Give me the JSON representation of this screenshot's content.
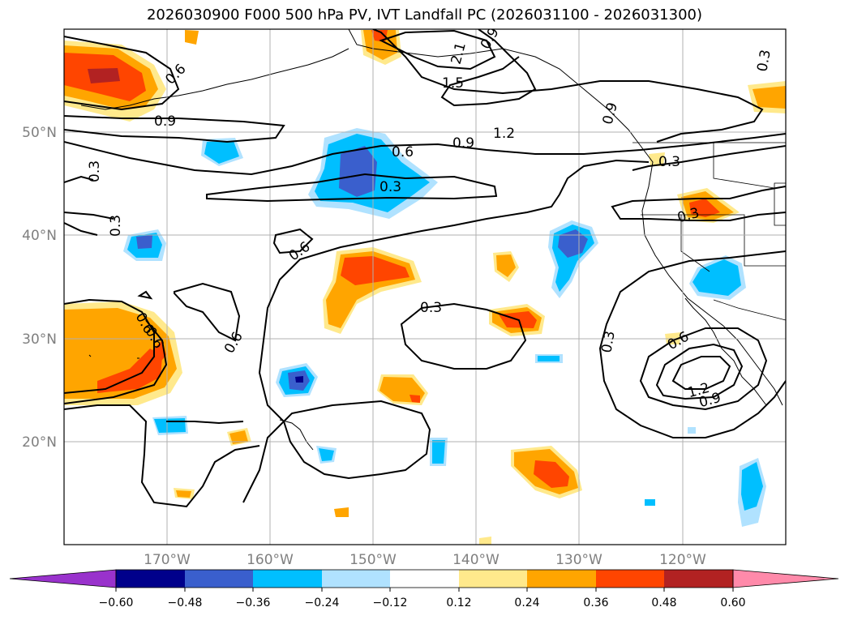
{
  "title": "2026030900 F000 500 hPa PV, IVT Landfall PC (2026031100 - 2026031300)",
  "map": {
    "lat_labels": [
      "50°N",
      "40°N",
      "30°N",
      "20°N"
    ],
    "lon_labels": [
      "170°W",
      "160°W",
      "150°W",
      "140°W",
      "130°W",
      "120°W"
    ],
    "contour_labels": [
      "0.6",
      "0.9",
      "0.3",
      "0.3",
      "2.1",
      "1.5",
      "0.9",
      "1.2",
      "0.9",
      "0.6",
      "0.3",
      "0.3",
      "0.6",
      "0.6",
      "0.3",
      "0.6",
      "0.3",
      "0.6",
      "1.2",
      "0.9",
      "0.3",
      "0.3",
      "0.9",
      "0.6"
    ]
  },
  "colorbar": {
    "ticks": [
      "−0.60",
      "−0.48",
      "−0.36",
      "−0.24",
      "−0.12",
      "0.12",
      "0.24",
      "0.36",
      "0.48",
      "0.60"
    ],
    "colors": [
      "#9932cc",
      "#00008b",
      "#3a5fcd",
      "#00bfff",
      "#b0e2ff",
      "#ffffff",
      "#ffe98c",
      "#ffa500",
      "#ff4500",
      "#b22222",
      "#ff8aaa"
    ]
  }
}
